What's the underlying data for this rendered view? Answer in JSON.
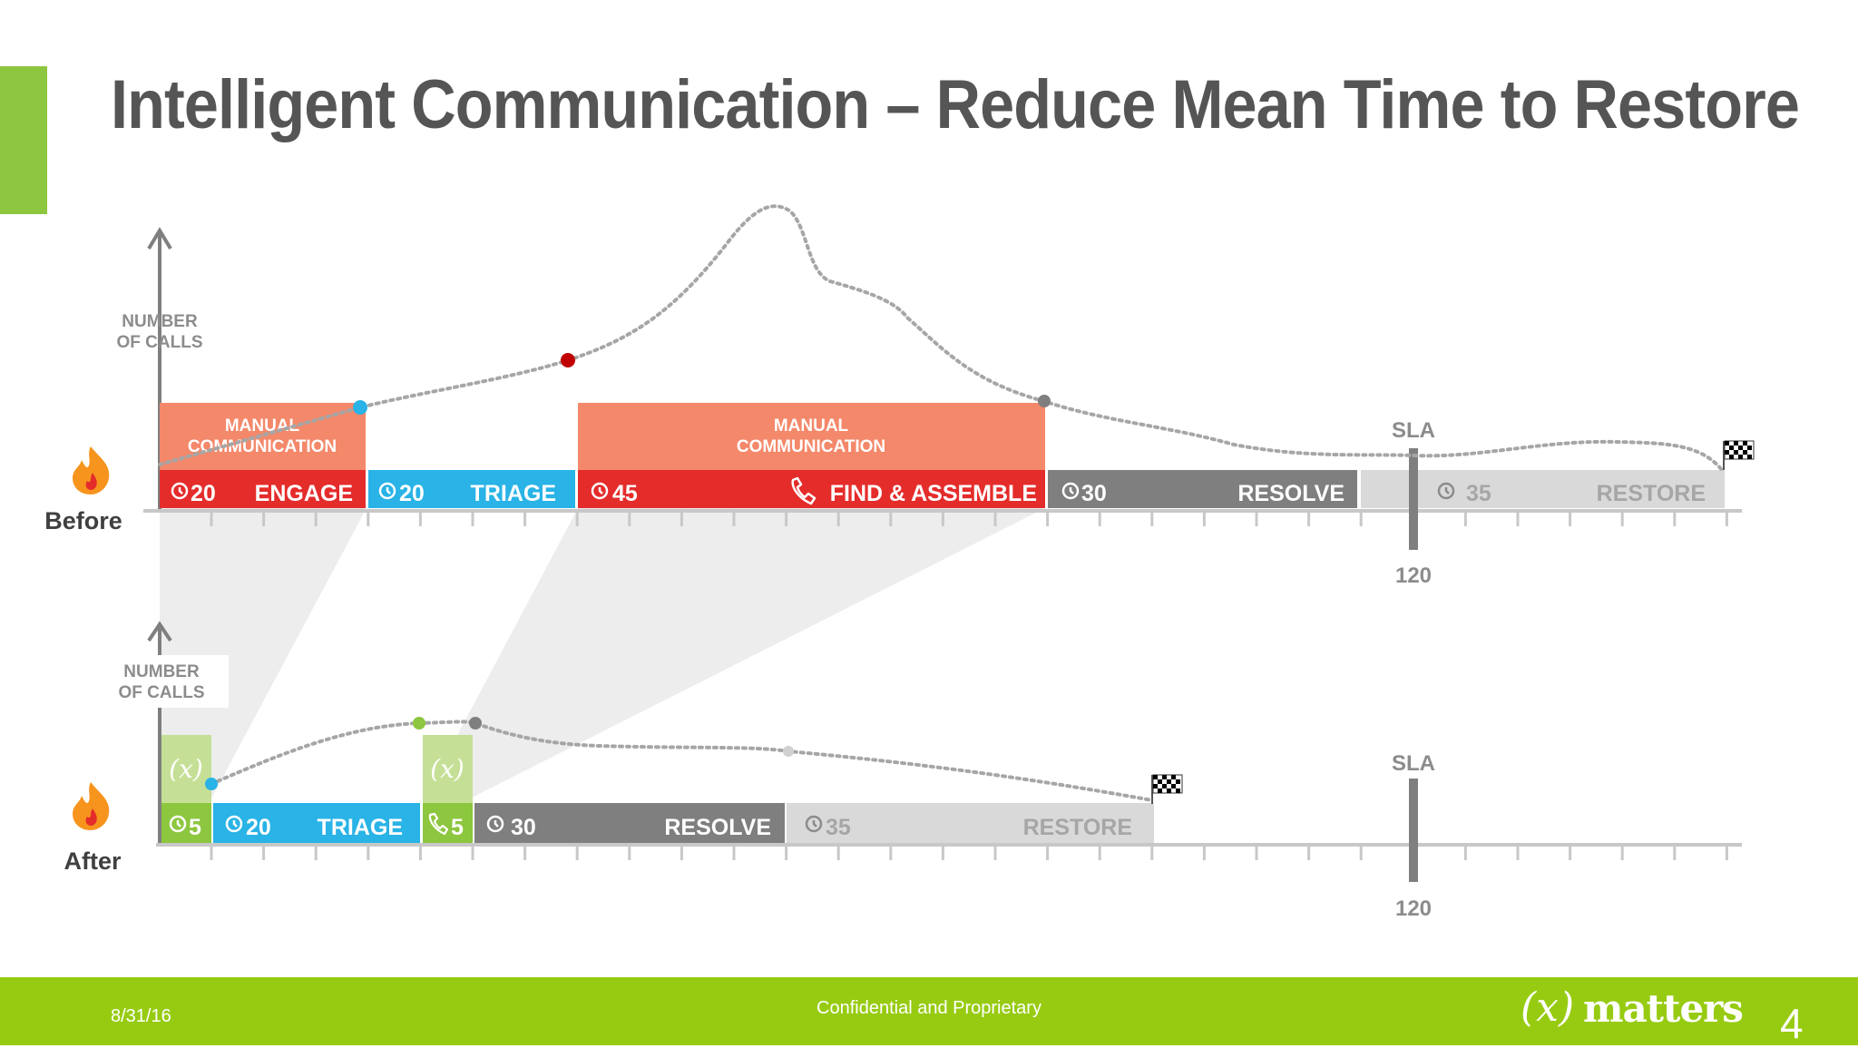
{
  "title": "Intelligent Communication – Reduce Mean Time to Restore",
  "colors": {
    "accent_green": "#8dc63f",
    "footer_green": "#97cb12",
    "red": "#e42c2b",
    "salmon": "#f4886a",
    "blue": "#29b3e6",
    "dark_gray": "#7f7f7f",
    "light_gray": "#d9d9d9",
    "xm_green": "#8dc63f",
    "xm_light": "#c5e096"
  },
  "before": {
    "label": "Before",
    "axis_label_1": "NUMBER",
    "axis_label_2": "OF CALLS",
    "manual_1_line1": "MANUAL",
    "manual_1_line2": "COMMUNICATION",
    "manual_2_line1": "MANUAL",
    "manual_2_line2": "COMMUNICATION",
    "segments": {
      "engage": {
        "minutes": "20",
        "label": "ENGAGE"
      },
      "triage": {
        "minutes": "20",
        "label": "TRIAGE"
      },
      "find": {
        "minutes": "45",
        "label": "FIND & ASSEMBLE"
      },
      "resolve": {
        "minutes": "30",
        "label": "RESOLVE"
      },
      "restore": {
        "minutes": "35",
        "label": "RESTORE"
      }
    },
    "sla_label": "SLA",
    "sla_value": "120"
  },
  "after": {
    "label": "After",
    "axis_label_1": "NUMBER",
    "axis_label_2": "OF CALLS",
    "xm_symbol_1": "(x)",
    "xm_symbol_2": "(x)",
    "segments": {
      "engage": {
        "minutes": "5"
      },
      "triage": {
        "minutes": "20",
        "label": "TRIAGE"
      },
      "assemble": {
        "minutes": "5"
      },
      "resolve": {
        "minutes": "30",
        "label": "RESOLVE"
      },
      "restore": {
        "minutes": "35",
        "label": "RESTORE"
      }
    },
    "sla_label": "SLA",
    "sla_value": "120"
  },
  "icons": [
    "fire-icon",
    "clock-icon",
    "phone-icon",
    "checkered-flag-icon"
  ],
  "footer": {
    "date": "8/31/16",
    "confidential": "Confidential and Proprietary",
    "logo_paren": "(x)",
    "logo_word": "matters",
    "page_number": "4"
  }
}
